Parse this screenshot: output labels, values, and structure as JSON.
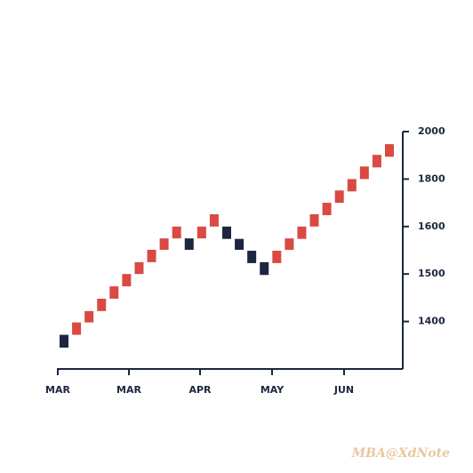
{
  "chart_data": {
    "type": "renko",
    "x_labels": [
      "MAR",
      "MAR",
      "APR",
      "MAY",
      "JUN"
    ],
    "open": [
      1372,
      1372,
      1398,
      1422,
      1448,
      1474,
      1500,
      1525,
      1551,
      1575,
      1575,
      1575,
      1600,
      1600,
      1574,
      1549,
      1525,
      1523,
      1551,
      1574,
      1600,
      1648,
      1700,
      1748,
      1800,
      1849,
      1894
    ],
    "close": [
      1345,
      1398,
      1422,
      1448,
      1474,
      1500,
      1525,
      1551,
      1575,
      1600,
      1551,
      1600,
      1652,
      1574,
      1551,
      1523,
      1498,
      1549,
      1575,
      1600,
      1652,
      1700,
      1752,
      1800,
      1853,
      1902,
      1947
    ],
    "up_color": "#d94a42",
    "down_color": "#1c2640",
    "ylim": [
      1300,
      2000
    ],
    "yticks": [
      1400,
      1500,
      1600,
      1800,
      2000
    ],
    "watermark": "MBA@XdNote"
  }
}
